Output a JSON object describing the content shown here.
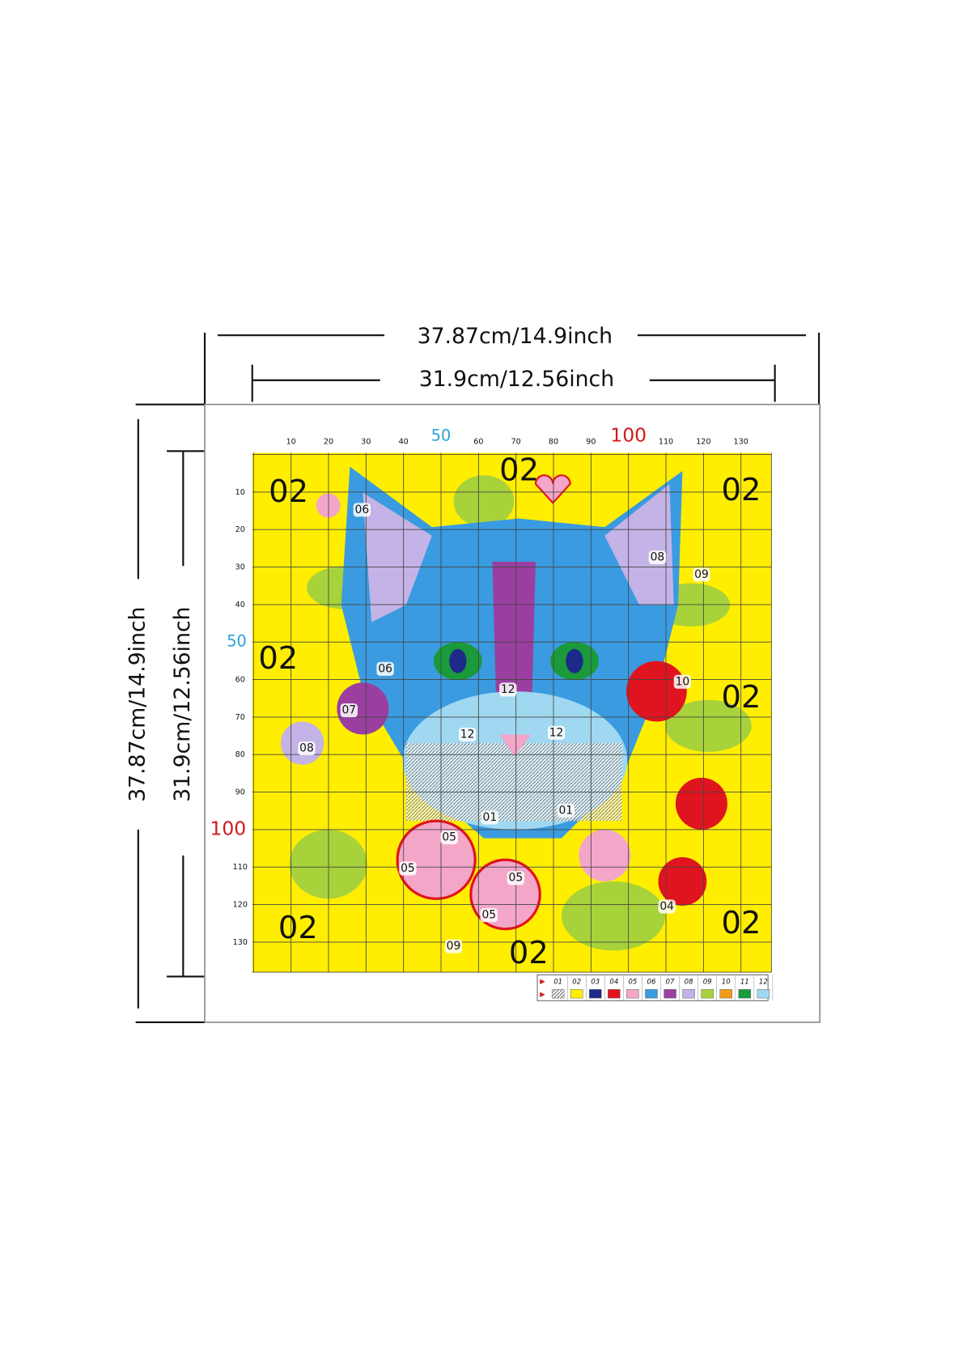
{
  "dimensions": {
    "outer_width": "37.87cm/14.9inch",
    "inner_width": "31.9cm/12.56inch",
    "outer_height": "37.87cm/14.9inch",
    "inner_height": "31.9cm/12.56inch"
  },
  "pattern": {
    "x_ticks": [
      "10",
      "20",
      "30",
      "40",
      "50",
      "60",
      "70",
      "80",
      "90",
      "100",
      "110",
      "120",
      "130"
    ],
    "y_ticks": [
      "10",
      "20",
      "30",
      "40",
      "50",
      "60",
      "70",
      "80",
      "90",
      "100",
      "110",
      "120",
      "130"
    ],
    "region_labels": [
      "02",
      "02",
      "02",
      "02",
      "02",
      "02",
      "02",
      "02",
      "06",
      "06",
      "08",
      "08",
      "09",
      "09",
      "10",
      "07",
      "12",
      "12",
      "12",
      "01",
      "01",
      "05",
      "05",
      "05",
      "05",
      "04"
    ],
    "legend": [
      {
        "code": "01",
        "color": "#ffffff"
      },
      {
        "code": "02",
        "color": "#ffee00"
      },
      {
        "code": "03",
        "color": "#1d2a8a"
      },
      {
        "code": "04",
        "color": "#e0141e"
      },
      {
        "code": "05",
        "color": "#f4a6c9"
      },
      {
        "code": "06",
        "color": "#3a9be0"
      },
      {
        "code": "07",
        "color": "#9a3ea0"
      },
      {
        "code": "08",
        "color": "#c4b3e6"
      },
      {
        "code": "09",
        "color": "#a8d23a"
      },
      {
        "code": "10",
        "color": "#f39a1a"
      },
      {
        "code": "11",
        "color": "#1a9a3a"
      },
      {
        "code": "12",
        "color": "#9fd8f0"
      }
    ]
  }
}
